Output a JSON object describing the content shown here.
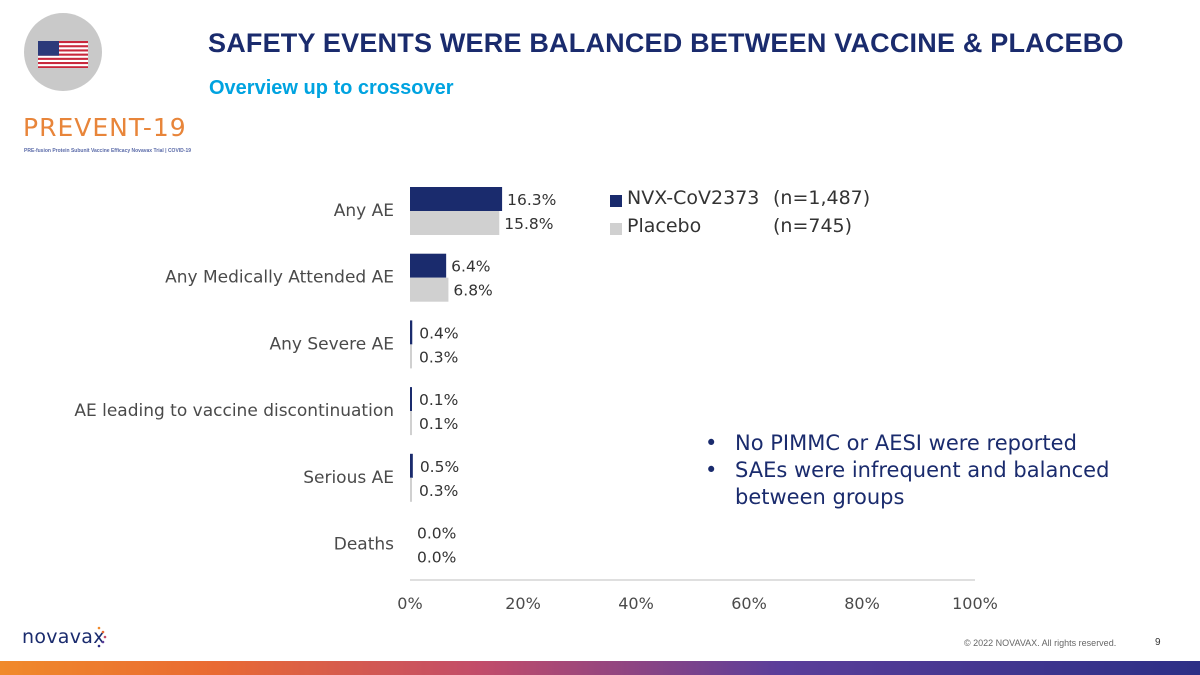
{
  "header": {
    "title": "SAFETY EVENTS WERE BALANCED BETWEEN VACCINE & PLACEBO",
    "subtitle": "Overview up to crossover"
  },
  "brand": {
    "name": "PREVENT-19",
    "tagline": "PRE-fusion Protein Subunit Vaccine Efficacy Novavax Trial | COVID-19",
    "flag_icon": "us-flag-icon"
  },
  "chart_data": {
    "type": "bar",
    "orientation": "horizontal",
    "categories": [
      "Any AE",
      "Any Medically Attended AE",
      "Any Severe AE",
      "AE leading to vaccine discontinuation",
      "Serious AE",
      "Deaths"
    ],
    "series": [
      {
        "name": "NVX-CoV2373",
        "n": "(n=1,487)",
        "color": "#1a2b6d",
        "values": [
          16.3,
          6.4,
          0.4,
          0.1,
          0.5,
          0.0
        ],
        "labels": [
          "16.3%",
          "6.4%",
          "0.4%",
          "0.1%",
          "0.5%",
          "0.0%"
        ]
      },
      {
        "name": "Placebo",
        "n": "(n=745)",
        "color": "#d0d0d0",
        "values": [
          15.8,
          6.8,
          0.3,
          0.1,
          0.3,
          0.0
        ],
        "labels": [
          "15.8%",
          "6.8%",
          "0.3%",
          "0.1%",
          "0.3%",
          "0.0%"
        ]
      }
    ],
    "xlim": [
      0,
      100
    ],
    "x_ticks": [
      "0%",
      "20%",
      "40%",
      "60%",
      "80%",
      "100%"
    ],
    "legend_position": "top-right",
    "grid": false
  },
  "notes": [
    "No PIMMC or AESI were reported",
    "SAEs were infrequent and balanced between groups"
  ],
  "footer": {
    "logo_text": "novavax",
    "copyright": "© 2022 NOVAVAX. All rights reserved.",
    "page_number": "9"
  }
}
